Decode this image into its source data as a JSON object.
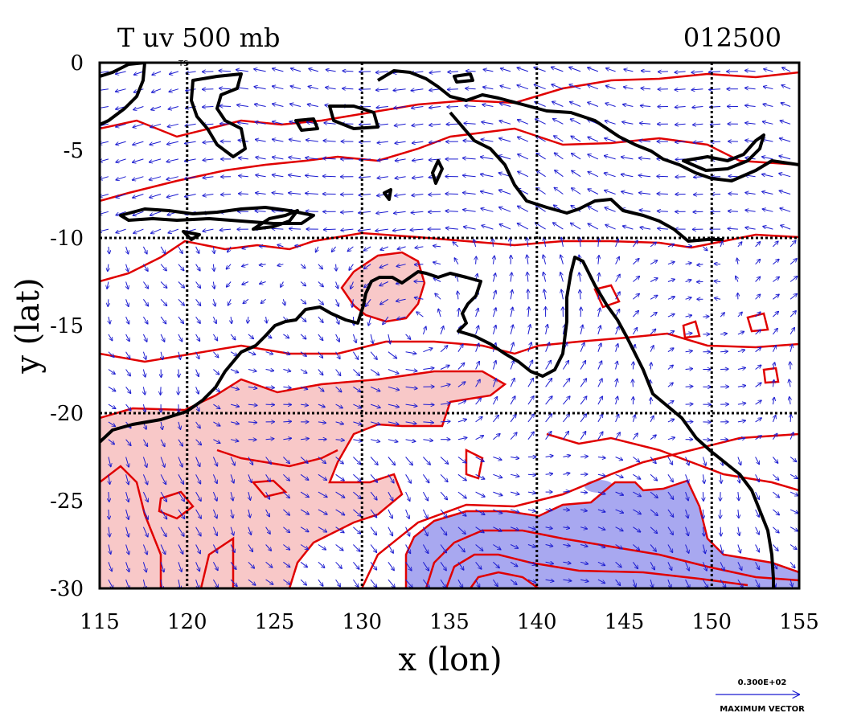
{
  "chart_data": {
    "type": "contour",
    "title": "T uv 500 mb",
    "timestamp": "012500",
    "xlabel": "x (lon)",
    "ylabel": "y (lat)",
    "xlim": [
      115,
      155
    ],
    "ylim": [
      -30,
      0
    ],
    "xticks": [
      "115",
      "120",
      "125",
      "130",
      "135",
      "140",
      "145",
      "150",
      "155"
    ],
    "yticks": [
      "0",
      "-5",
      "-10",
      "-15",
      "-20",
      "-25",
      "-30"
    ],
    "grid_lon": [
      120,
      130,
      140,
      150
    ],
    "grid_lat": [
      -10,
      -20
    ],
    "grid_color": "#000000",
    "contour_color": "#e00000",
    "warm_fill_color": "#f8c8c8",
    "cold_fill_color": "#a8a8f0",
    "vector_color": "#1a1ad0",
    "coastline_color": "#000000",
    "reference_vector_value": "0.300E+02",
    "reference_vector_label": "MAXIMUM VECTOR",
    "map_label": "TS"
  }
}
